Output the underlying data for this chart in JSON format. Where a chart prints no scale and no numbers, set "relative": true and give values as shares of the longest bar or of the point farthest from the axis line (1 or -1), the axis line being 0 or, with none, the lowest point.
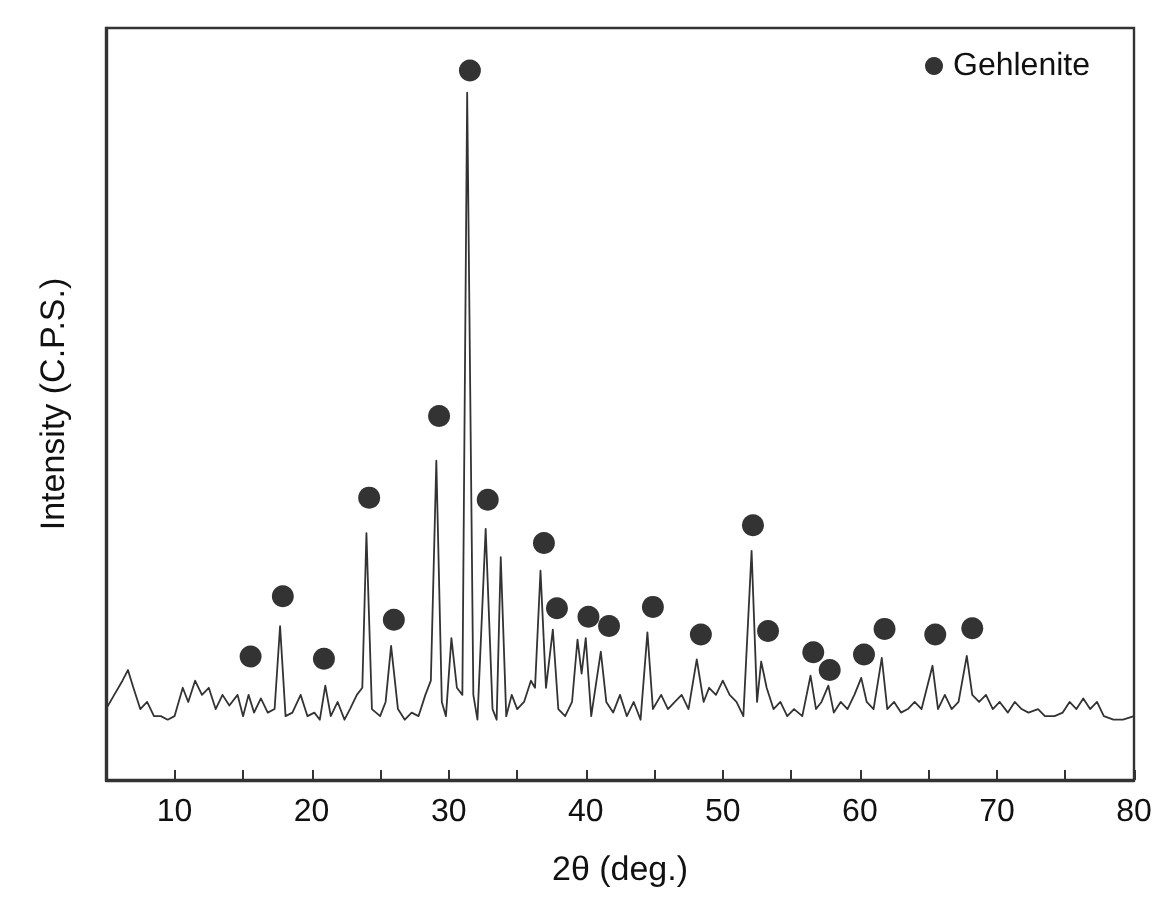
{
  "chart_data": {
    "type": "line",
    "relative": true,
    "xlabel": "2θ (deg.)",
    "ylabel": "Intensity (C.P.S.)",
    "xlim": [
      5,
      80
    ],
    "xticks": [
      10,
      {
        "value": 15,
        "label": null
      },
      20,
      {
        "value": 25,
        "label": null
      },
      30,
      {
        "value": 35,
        "label": null
      },
      40,
      {
        "value": 45,
        "label": null
      },
      50,
      {
        "value": 55,
        "label": null
      },
      60,
      {
        "value": 65,
        "label": null
      },
      70,
      {
        "value": 75,
        "label": null
      },
      80
    ],
    "grid": false,
    "legend": "top right",
    "series": [
      {
        "color": "#333333",
        "marker": "none",
        "line_style": "solid",
        "x": [
          5,
          5.6,
          6.2,
          6.6,
          7.0,
          7.5,
          8.0,
          8.5,
          9.0,
          9.5,
          10.0,
          10.6,
          11.0,
          11.5,
          12.0,
          12.5,
          13.0,
          13.5,
          14.0,
          14.6,
          15.0,
          15.4,
          15.8,
          16.3,
          16.8,
          17.3,
          17.7,
          18.1,
          18.6,
          19.2,
          19.7,
          20.2,
          20.6,
          21.0,
          21.4,
          21.9,
          22.4,
          22.8,
          23.3,
          23.7,
          24.0,
          24.4,
          25.0,
          25.4,
          25.8,
          26.3,
          26.8,
          27.3,
          27.8,
          28.3,
          28.7,
          29.1,
          29.5,
          29.8,
          30.2,
          30.6,
          31.0,
          31.35,
          31.8,
          32.1,
          32.7,
          33.2,
          33.5,
          33.8,
          34.2,
          34.6,
          35.0,
          35.5,
          36.0,
          36.3,
          36.7,
          37.1,
          37.6,
          38.0,
          38.5,
          39.0,
          39.4,
          39.7,
          40.0,
          40.4,
          41.1,
          41.5,
          42.0,
          42.5,
          43.0,
          43.5,
          44.0,
          44.5,
          44.9,
          45.5,
          46.0,
          46.5,
          47.0,
          47.5,
          48.1,
          48.6,
          49.0,
          49.5,
          50.0,
          50.5,
          51.0,
          51.5,
          52.1,
          52.5,
          52.8,
          53.2,
          53.7,
          54.2,
          54.7,
          55.2,
          55.8,
          56.4,
          56.8,
          57.2,
          57.7,
          58.1,
          58.6,
          59.1,
          59.6,
          60.1,
          60.5,
          61.0,
          61.6,
          62.0,
          62.5,
          63.0,
          63.5,
          64.0,
          64.5,
          65.3,
          65.7,
          66.2,
          66.7,
          67.2,
          67.8,
          68.2,
          68.7,
          69.2,
          69.7,
          70.2,
          70.8,
          71.3,
          71.8,
          72.3,
          73.0,
          73.5,
          74.2,
          74.8,
          75.3,
          75.8,
          76.3,
          76.8,
          77.3,
          77.8,
          78.5,
          79.2,
          80
        ],
        "values": [
          0.1,
          0.12,
          0.14,
          0.155,
          0.13,
          0.1,
          0.11,
          0.09,
          0.09,
          0.085,
          0.09,
          0.13,
          0.11,
          0.14,
          0.12,
          0.13,
          0.1,
          0.12,
          0.105,
          0.12,
          0.09,
          0.12,
          0.095,
          0.115,
          0.095,
          0.1,
          0.217,
          0.09,
          0.095,
          0.12,
          0.09,
          0.095,
          0.085,
          0.133,
          0.09,
          0.11,
          0.085,
          0.1,
          0.12,
          0.13,
          0.348,
          0.1,
          0.09,
          0.11,
          0.189,
          0.1,
          0.085,
          0.095,
          0.09,
          0.12,
          0.14,
          0.45,
          0.11,
          0.09,
          0.2,
          0.13,
          0.12,
          0.969,
          0.12,
          0.085,
          0.354,
          0.1,
          0.085,
          0.314,
          0.09,
          0.12,
          0.1,
          0.11,
          0.14,
          0.13,
          0.295,
          0.13,
          0.212,
          0.1,
          0.09,
          0.11,
          0.198,
          0.15,
          0.2,
          0.09,
          0.181,
          0.11,
          0.095,
          0.12,
          0.09,
          0.11,
          0.085,
          0.208,
          0.1,
          0.12,
          0.1,
          0.11,
          0.12,
          0.1,
          0.17,
          0.11,
          0.13,
          0.12,
          0.14,
          0.12,
          0.11,
          0.09,
          0.323,
          0.11,
          0.167,
          0.13,
          0.1,
          0.11,
          0.09,
          0.1,
          0.09,
          0.147,
          0.1,
          0.11,
          0.133,
          0.095,
          0.11,
          0.1,
          0.12,
          0.144,
          0.11,
          0.1,
          0.172,
          0.1,
          0.11,
          0.095,
          0.1,
          0.11,
          0.1,
          0.161,
          0.1,
          0.12,
          0.1,
          0.11,
          0.175,
          0.12,
          0.11,
          0.12,
          0.1,
          0.11,
          0.095,
          0.11,
          0.1,
          0.095,
          0.1,
          0.09,
          0.09,
          0.095,
          0.11,
          0.1,
          0.115,
          0.1,
          0.11,
          0.09,
          0.085,
          0.085,
          0.09
        ]
      },
      {
        "type": "scatter",
        "name": "Gehlenite",
        "color": "#000000",
        "marker": "circle",
        "x": [
          15.55,
          17.9,
          20.9,
          24.2,
          26.0,
          29.3,
          31.55,
          32.85,
          36.95,
          37.9,
          40.2,
          41.7,
          44.9,
          48.4,
          52.2,
          53.3,
          56.6,
          57.8,
          60.3,
          61.8,
          65.5,
          68.2
        ],
        "values": [
          0.174,
          0.259,
          0.171,
          0.398,
          0.226,
          0.513,
          1.0,
          0.395,
          0.334,
          0.242,
          0.23,
          0.217,
          0.244,
          0.205,
          0.359,
          0.21,
          0.18,
          0.155,
          0.177,
          0.213,
          0.205,
          0.214
        ]
      }
    ]
  }
}
